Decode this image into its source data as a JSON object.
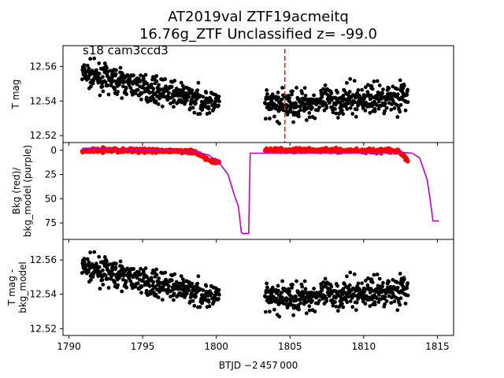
{
  "title_line1": "AT2019val  ZTF19acmeitq",
  "title_line2": "16.76g_ZTF Unclassified z= -99.0",
  "annotation": "s18 cam3ccd3",
  "xlabel": "BTJD −2 457 000",
  "colors": {
    "points": "#000000",
    "bkg": "#ff0000",
    "bkg_model": "#bf00bf",
    "marker_line": "#d62728"
  },
  "chart_data": [
    {
      "type": "scatter",
      "panel": "top",
      "ylabel": "T mag",
      "xlim": [
        1789.6,
        1816.1
      ],
      "ylim": [
        12.572,
        12.516
      ],
      "yticks": [
        12.52,
        12.54,
        12.56
      ],
      "xticks": [
        1790,
        1795,
        1800,
        1805,
        1810,
        1815
      ],
      "marker_x": 1804.65,
      "segments": [
        {
          "x_start": 1790.9,
          "x_end": 1800.2,
          "y_start": 12.556,
          "y_end": 12.538,
          "scatter": 0.009
        },
        {
          "x_start": 1803.3,
          "x_end": 1813.0,
          "y_start": 12.537,
          "y_end": 12.543,
          "scatter": 0.011
        }
      ]
    },
    {
      "type": "line",
      "panel": "middle",
      "ylabel": "Bkg (red)/\nbkg_model (purple)",
      "xlim": [
        1789.6,
        1816.1
      ],
      "ylim": [
        -8,
        92
      ],
      "yticks": [
        0,
        25,
        50,
        75
      ],
      "bkg_segments": [
        {
          "x": [
            1790.9,
            1795,
            1798.5,
            1799.5,
            1800.2
          ],
          "y": [
            0,
            0,
            1,
            11,
            12
          ]
        },
        {
          "x": [
            1803.3,
            1808,
            1812.4,
            1813.0
          ],
          "y": [
            0,
            0,
            1,
            11
          ]
        }
      ],
      "bkg_model": {
        "x": [
          1790.9,
          1796,
          1798.5,
          1799.5,
          1800.3,
          1800.8,
          1801.2,
          1801.5,
          1801.7,
          1801.8,
          1802.2,
          1802.3,
          1810,
          1812.5,
          1813.3,
          1813.8,
          1814.3,
          1814.5,
          1814.7,
          1815.1
        ],
        "y": [
          -2,
          0,
          1,
          5,
          15,
          25,
          45,
          58,
          85,
          86,
          86,
          3,
          3,
          2,
          3,
          8,
          30,
          50,
          73,
          73
        ]
      }
    },
    {
      "type": "scatter",
      "panel": "bottom",
      "ylabel": "T mag -\nbkg_model",
      "xlim": [
        1789.6,
        1816.1
      ],
      "ylim": [
        12.572,
        12.516
      ],
      "yticks": [
        12.52,
        12.54,
        12.56
      ],
      "xticks": [
        1790,
        1795,
        1800,
        1805,
        1810,
        1815
      ],
      "segments": [
        {
          "x_start": 1790.9,
          "x_end": 1800.2,
          "y_start": 12.556,
          "y_end": 12.538,
          "scatter": 0.009
        },
        {
          "x_start": 1803.3,
          "x_end": 1813.0,
          "y_start": 12.537,
          "y_end": 12.543,
          "scatter": 0.011
        }
      ]
    }
  ]
}
